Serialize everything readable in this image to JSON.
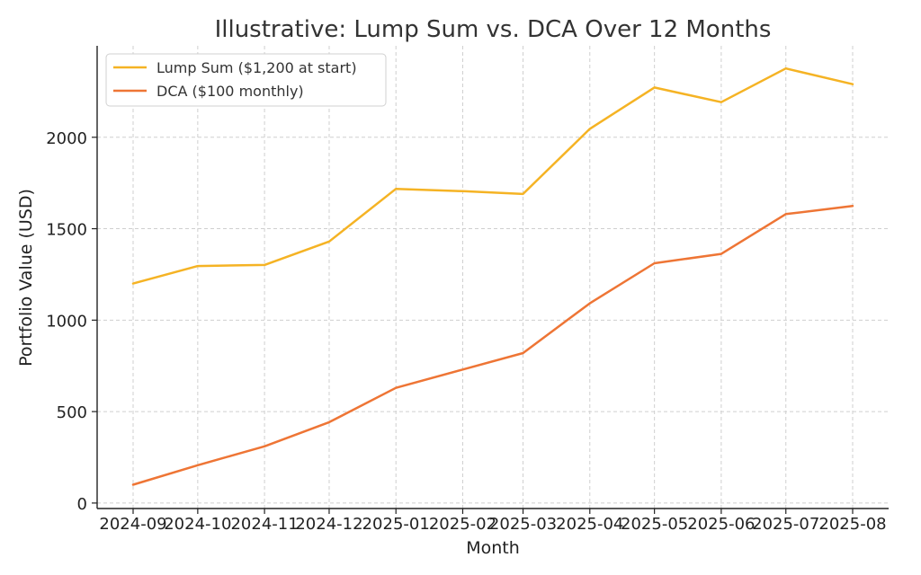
{
  "chart_data": {
    "type": "line",
    "title": "Illustrative: Lump Sum vs. DCA Over 12 Months",
    "xlabel": "Month",
    "ylabel": "Portfolio Value (USD)",
    "categories": [
      "2024-09",
      "2024-10",
      "2024-11",
      "2024-12",
      "2025-01",
      "2025-02",
      "2025-03",
      "2025-04",
      "2025-05",
      "2025-06",
      "2025-07",
      "2025-08"
    ],
    "x_days": [
      0,
      30,
      61,
      91,
      122,
      153,
      181,
      212,
      242,
      273,
      303,
      334
    ],
    "ylim": [
      -30,
      2500
    ],
    "yticks": [
      0,
      500,
      1000,
      1500,
      2000
    ],
    "grid": true,
    "legend": "top-left",
    "series": [
      {
        "name": "Lump Sum ($1,200 at start)",
        "color": "#F5B324",
        "values": [
          1200,
          1296,
          1302,
          1430,
          1718,
          1705,
          1690,
          2046,
          2272,
          2192,
          2376,
          2290
        ]
      },
      {
        "name": "DCA ($100 monthly)",
        "color": "#EE7535",
        "values": [
          100,
          207,
          310,
          442,
          630,
          730,
          820,
          1092,
          1311,
          1362,
          1580,
          1624
        ]
      }
    ]
  }
}
